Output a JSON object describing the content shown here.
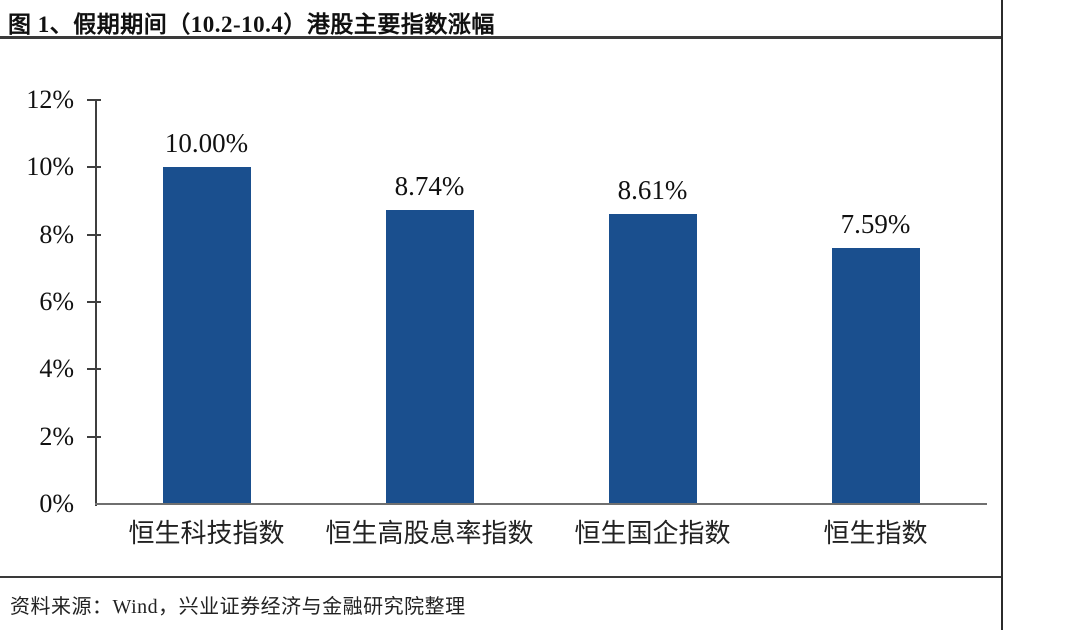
{
  "figure": {
    "title_label": "图 1、假期期间（10.2-10.4）港股主要指数涨幅",
    "source_label": "资料来源：Wind，兴业证券经济与金融研究院整理"
  },
  "chart_data": {
    "type": "bar",
    "title": "假期期间（10.2-10.4）港股主要指数涨幅",
    "categories": [
      "恒生科技指数",
      "恒生高股息率指数",
      "恒生国企指数",
      "恒生指数"
    ],
    "values": [
      10.0,
      8.74,
      8.61,
      7.59
    ],
    "value_labels": [
      "10.00%",
      "8.74%",
      "8.61%",
      "7.59%"
    ],
    "xlabel": "",
    "ylabel": "",
    "ylim": [
      0,
      12
    ],
    "ytick_step": 2,
    "ytick_labels": [
      "0%",
      "2%",
      "4%",
      "6%",
      "8%",
      "10%",
      "12%"
    ],
    "grid": false,
    "legend": null,
    "bar_color": "#1A4F8E",
    "axis_color": "#3f3f3f",
    "source": "Wind，兴业证券经济与金融研究院整理"
  }
}
